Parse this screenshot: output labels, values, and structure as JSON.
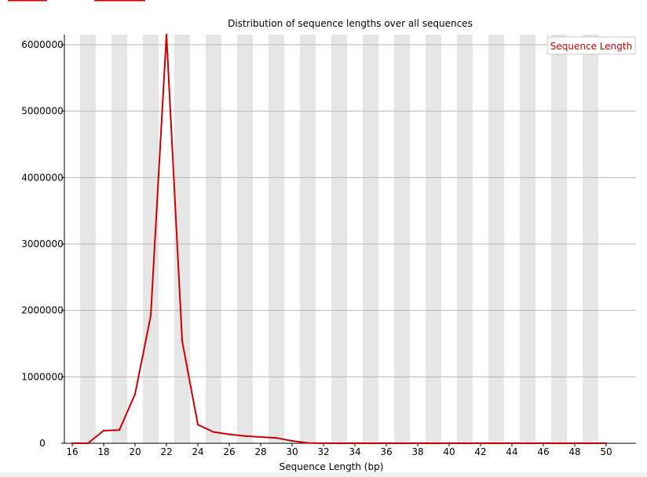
{
  "colors": {
    "series": "#cc0000",
    "stripe": "#e6e6e6",
    "grid": "#b4b4b4",
    "axis": "#000000",
    "title_red": "#cc0000"
  },
  "chart_data": {
    "type": "line",
    "title": "Distribution of sequence lengths over all sequences",
    "xlabel": "Sequence Length (bp)",
    "ylabel": "",
    "xlim": [
      16,
      50
    ],
    "ylim": [
      0,
      6000000
    ],
    "x_ticks": [
      16,
      18,
      20,
      22,
      24,
      26,
      28,
      30,
      32,
      34,
      36,
      38,
      40,
      42,
      44,
      46,
      48,
      50
    ],
    "y_ticks": [
      0,
      1000000,
      2000000,
      3000000,
      4000000,
      5000000,
      6000000
    ],
    "x_tick_labels": [
      "16",
      "18",
      "20",
      "22",
      "24",
      "26",
      "28",
      "30",
      "32",
      "34",
      "36",
      "38",
      "40",
      "42",
      "44",
      "46",
      "48",
      "50"
    ],
    "y_tick_labels": [
      "0",
      "1000000",
      "2000000",
      "3000000",
      "4000000",
      "5000000",
      "6000000"
    ],
    "grid": true,
    "legend_position": "top-right",
    "series": [
      {
        "name": "Sequence Length",
        "x": [
          16,
          17,
          18,
          19,
          20,
          21,
          22,
          23,
          24,
          25,
          26,
          27,
          28,
          29,
          30,
          31,
          32,
          33,
          34,
          35,
          36,
          37,
          38,
          39,
          40,
          41,
          42,
          43,
          44,
          45,
          46,
          47,
          48,
          49,
          50
        ],
        "values": [
          0,
          0,
          190000,
          200000,
          740000,
          1920000,
          6150000,
          1540000,
          280000,
          170000,
          135000,
          110000,
          95000,
          80000,
          35000,
          5000,
          0,
          0,
          0,
          0,
          0,
          0,
          0,
          0,
          0,
          0,
          0,
          0,
          0,
          0,
          0,
          0,
          0,
          0,
          0
        ]
      }
    ]
  }
}
